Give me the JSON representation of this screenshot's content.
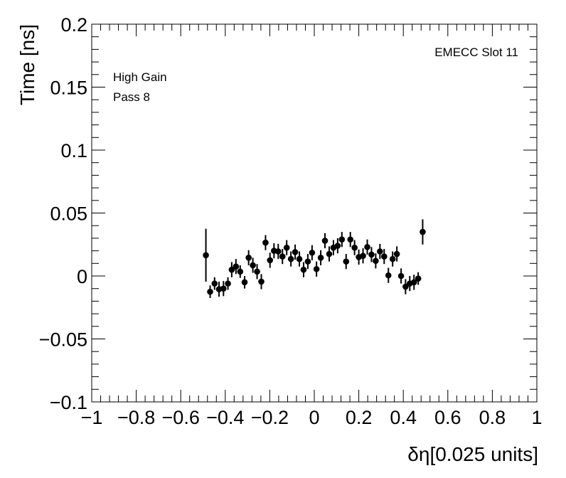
{
  "chart_data": {
    "type": "scatter",
    "xlabel": "δη[0.025 units]",
    "ylabel": "Time [ns]",
    "xlim": [
      -1,
      1
    ],
    "ylim": [
      -0.1,
      0.2
    ],
    "x_ticks": [
      -1,
      -0.8,
      -0.6,
      -0.4,
      -0.2,
      0,
      0.2,
      0.4,
      0.6,
      0.8,
      1
    ],
    "x_tick_labels": [
      "−1",
      "−0.8",
      "−0.6",
      "−0.4",
      "−0.2",
      "0",
      "0.2",
      "0.4",
      "0.6",
      "0.8",
      "1"
    ],
    "y_ticks": [
      -0.1,
      -0.05,
      0,
      0.05,
      0.1,
      0.15,
      0.2
    ],
    "y_tick_labels": [
      "−0.1",
      "−0.05",
      "0",
      "0.05",
      "0.1",
      "0.15",
      "0.2"
    ],
    "annotations": {
      "top_right": "EMECC Slot 11",
      "line1": "High Gain",
      "line2": "Pass 8"
    },
    "grid": false,
    "marker_color": "#000000",
    "points": [
      {
        "x": -0.487,
        "y": 0.0165,
        "err": 0.021
      },
      {
        "x": -0.468,
        "y": -0.0125,
        "err": 0.005
      },
      {
        "x": -0.448,
        "y": -0.006,
        "err": 0.005
      },
      {
        "x": -0.428,
        "y": -0.0105,
        "err": 0.006
      },
      {
        "x": -0.408,
        "y": -0.01,
        "err": 0.006
      },
      {
        "x": -0.388,
        "y": -0.006,
        "err": 0.005
      },
      {
        "x": -0.371,
        "y": 0.005,
        "err": 0.006
      },
      {
        "x": -0.352,
        "y": 0.0075,
        "err": 0.006
      },
      {
        "x": -0.333,
        "y": 0.0035,
        "err": 0.005
      },
      {
        "x": -0.313,
        "y": -0.005,
        "err": 0.005
      },
      {
        "x": -0.295,
        "y": 0.0145,
        "err": 0.006
      },
      {
        "x": -0.276,
        "y": 0.0085,
        "err": 0.006
      },
      {
        "x": -0.257,
        "y": 0.0035,
        "err": 0.006
      },
      {
        "x": -0.238,
        "y": -0.0045,
        "err": 0.006
      },
      {
        "x": -0.219,
        "y": 0.0265,
        "err": 0.006
      },
      {
        "x": -0.199,
        "y": 0.0125,
        "err": 0.006
      },
      {
        "x": -0.181,
        "y": 0.02,
        "err": 0.006
      },
      {
        "x": -0.162,
        "y": 0.0195,
        "err": 0.006
      },
      {
        "x": -0.143,
        "y": 0.0155,
        "err": 0.006
      },
      {
        "x": -0.124,
        "y": 0.0225,
        "err": 0.006
      },
      {
        "x": -0.105,
        "y": 0.0135,
        "err": 0.006
      },
      {
        "x": -0.086,
        "y": 0.019,
        "err": 0.006
      },
      {
        "x": -0.067,
        "y": 0.0135,
        "err": 0.006
      },
      {
        "x": -0.048,
        "y": 0.005,
        "err": 0.006
      },
      {
        "x": -0.029,
        "y": 0.0115,
        "err": 0.006
      },
      {
        "x": -0.01,
        "y": 0.0185,
        "err": 0.006
      },
      {
        "x": 0.01,
        "y": 0.0055,
        "err": 0.006
      },
      {
        "x": 0.029,
        "y": 0.0145,
        "err": 0.006
      },
      {
        "x": 0.048,
        "y": 0.028,
        "err": 0.006
      },
      {
        "x": 0.067,
        "y": 0.0175,
        "err": 0.006
      },
      {
        "x": 0.086,
        "y": 0.0225,
        "err": 0.006
      },
      {
        "x": 0.105,
        "y": 0.024,
        "err": 0.006
      },
      {
        "x": 0.124,
        "y": 0.029,
        "err": 0.006
      },
      {
        "x": 0.143,
        "y": 0.0115,
        "err": 0.006
      },
      {
        "x": 0.162,
        "y": 0.029,
        "err": 0.006
      },
      {
        "x": 0.181,
        "y": 0.0225,
        "err": 0.006
      },
      {
        "x": 0.2,
        "y": 0.015,
        "err": 0.006
      },
      {
        "x": 0.219,
        "y": 0.016,
        "err": 0.006
      },
      {
        "x": 0.238,
        "y": 0.023,
        "err": 0.006
      },
      {
        "x": 0.257,
        "y": 0.017,
        "err": 0.006
      },
      {
        "x": 0.276,
        "y": 0.012,
        "err": 0.006
      },
      {
        "x": 0.295,
        "y": 0.0195,
        "err": 0.006
      },
      {
        "x": 0.314,
        "y": 0.0155,
        "err": 0.006
      },
      {
        "x": 0.333,
        "y": 0.0005,
        "err": 0.006
      },
      {
        "x": 0.352,
        "y": 0.0135,
        "err": 0.006
      },
      {
        "x": 0.371,
        "y": 0.0175,
        "err": 0.006
      },
      {
        "x": 0.39,
        "y": 0.0,
        "err": 0.006
      },
      {
        "x": 0.41,
        "y": -0.0085,
        "err": 0.006
      },
      {
        "x": 0.429,
        "y": -0.006,
        "err": 0.006
      },
      {
        "x": 0.448,
        "y": -0.005,
        "err": 0.006
      },
      {
        "x": 0.467,
        "y": -0.002,
        "err": 0.005
      },
      {
        "x": 0.487,
        "y": 0.035,
        "err": 0.01
      }
    ]
  }
}
